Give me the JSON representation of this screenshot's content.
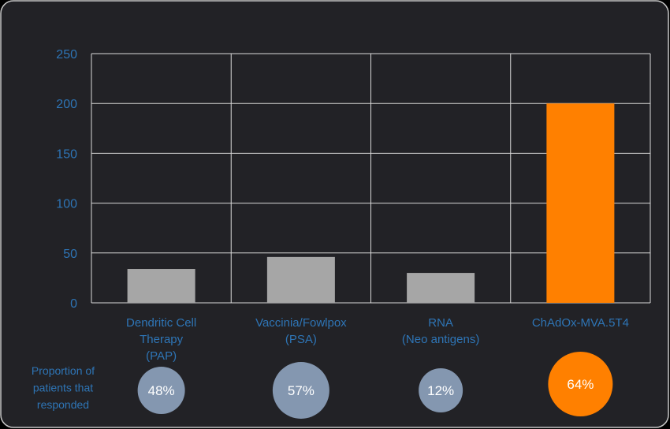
{
  "colors": {
    "panel_bg": "#222226",
    "panel_border": "#c8c8c8",
    "grid": "#d9d9d9",
    "axis_text": "#2e75b6",
    "bar_default": "#a6a6a6",
    "bar_highlight": "#ff8000",
    "bubble_default": "#8497b0",
    "bubble_highlight": "#ff8000",
    "bubble_text": "#ffffff"
  },
  "chart_data": {
    "type": "bar",
    "title": "",
    "xlabel": "",
    "ylabel": "",
    "ylim": [
      0,
      250
    ],
    "yticks": [
      0,
      50,
      100,
      150,
      200,
      250
    ],
    "grid": true,
    "categories": [
      [
        "Dendritic Cell",
        "Therapy",
        "(PAP)"
      ],
      [
        "Vaccinia/Fowlpox",
        "(PSA)"
      ],
      [
        "RNA",
        "(Neo antigens)"
      ],
      [
        "ChAdOx-MVA.5T4"
      ]
    ],
    "values": [
      34,
      46,
      30,
      200
    ],
    "highlight_index": 3
  },
  "response": {
    "label": [
      "Proportion of",
      "patients that",
      "responded"
    ],
    "values": [
      "48%",
      "57%",
      "12%",
      "64%"
    ]
  }
}
